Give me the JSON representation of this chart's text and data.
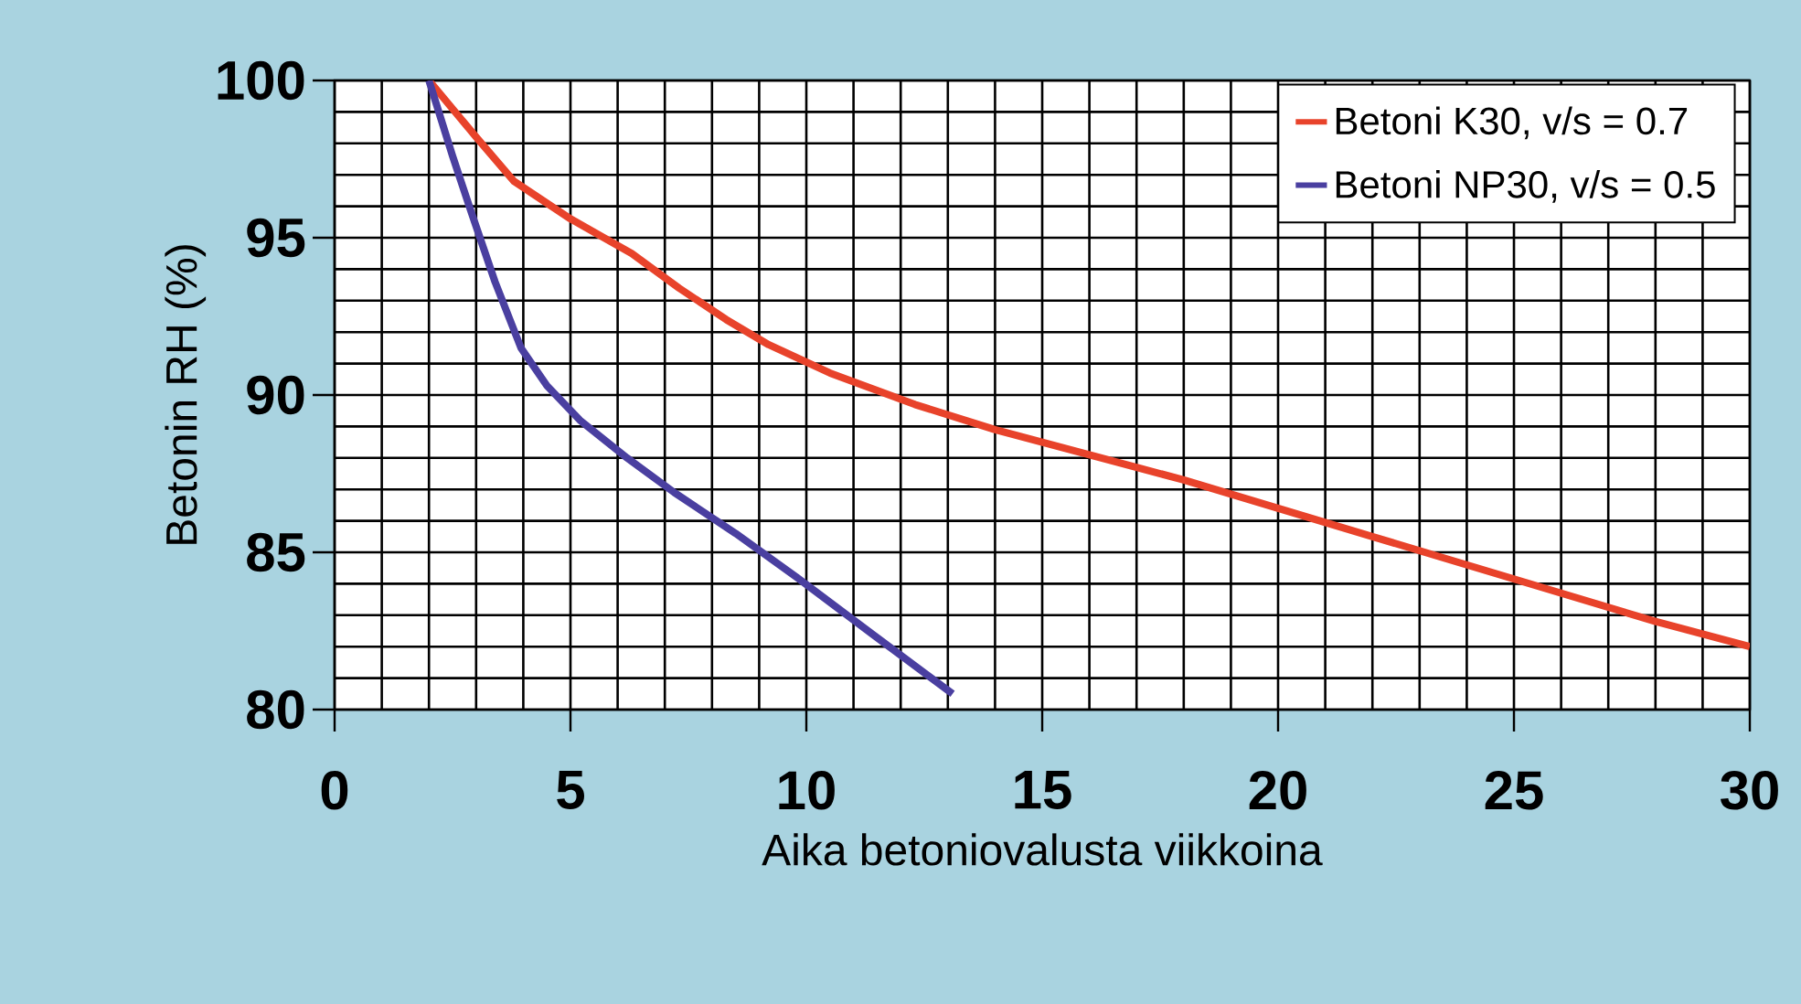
{
  "chart_data": {
    "type": "line",
    "xlabel": "Aika betoniovalusta viikkoina",
    "ylabel": "Betonin RH (%)",
    "xlim": [
      0,
      30
    ],
    "ylim": [
      80,
      100
    ],
    "xticks": [
      0,
      5,
      10,
      15,
      20,
      25,
      30
    ],
    "yticks": [
      80,
      85,
      90,
      95,
      100
    ],
    "grid": true,
    "legend": "top right",
    "series": [
      {
        "name": "Betoni K30, v/s = 0.7",
        "color": "#e8432b",
        "x": [
          2,
          3,
          3.8,
          5,
          6.3,
          7.3,
          8.3,
          9.2,
          10.5,
          12.3,
          14,
          16,
          18,
          20,
          22,
          24,
          26,
          28,
          30
        ],
        "values": [
          100,
          98.2,
          96.8,
          95.6,
          94.5,
          93.4,
          92.4,
          91.6,
          90.7,
          89.7,
          88.9,
          88.1,
          87.3,
          86.4,
          85.5,
          84.6,
          83.7,
          82.8,
          82.0
        ]
      },
      {
        "name": "Betoni NP30, v/s = 0.5",
        "color": "#4a3fa0",
        "x": [
          2,
          2.5,
          2.9,
          3.4,
          3.95,
          4.5,
          5.2,
          6.2,
          7.2,
          8.5,
          9.8,
          11.4,
          13.1
        ],
        "values": [
          100,
          97.6,
          95.8,
          93.6,
          91.5,
          90.3,
          89.2,
          88.0,
          86.9,
          85.6,
          84.2,
          82.4,
          80.5
        ]
      }
    ]
  }
}
